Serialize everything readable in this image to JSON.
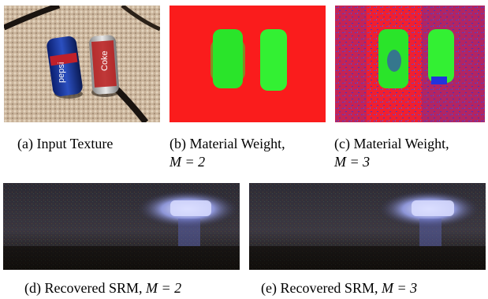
{
  "figure": {
    "captions": {
      "a": {
        "prefix": "(a) Input Texture",
        "line2": ""
      },
      "b": {
        "prefix": "(b) Material Weight,",
        "math": "M = 2"
      },
      "c": {
        "prefix": "(c) Material Weight,",
        "math": "M = 3"
      },
      "d": {
        "prefix": "(d) Recovered SRM,",
        "math": "M = 2"
      },
      "e": {
        "prefix": "(e) Recovered SRM,",
        "math": "M = 3"
      }
    },
    "can_labels": {
      "left": "pepsi",
      "right": "Coke"
    },
    "colors": {
      "weight_background": "#ff1a1a",
      "weight_material": "#22ee22",
      "weight_third": "#3344cc"
    }
  }
}
